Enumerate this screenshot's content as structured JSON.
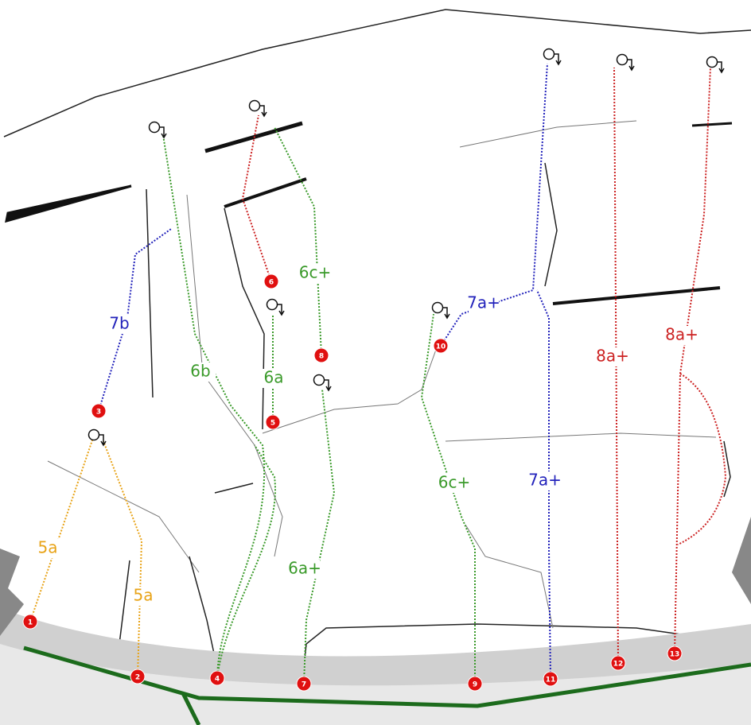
{
  "markers": [
    "1",
    "2",
    "3",
    "4",
    "5",
    "6",
    "7",
    "8",
    "9",
    "10",
    "11",
    "12",
    "13"
  ],
  "grades": [
    "5a",
    "5a",
    "7b",
    "6b",
    "6a",
    "6c+",
    "6a+",
    "6c+",
    "7a+",
    "7a+",
    "8a+",
    "8a+"
  ]
}
